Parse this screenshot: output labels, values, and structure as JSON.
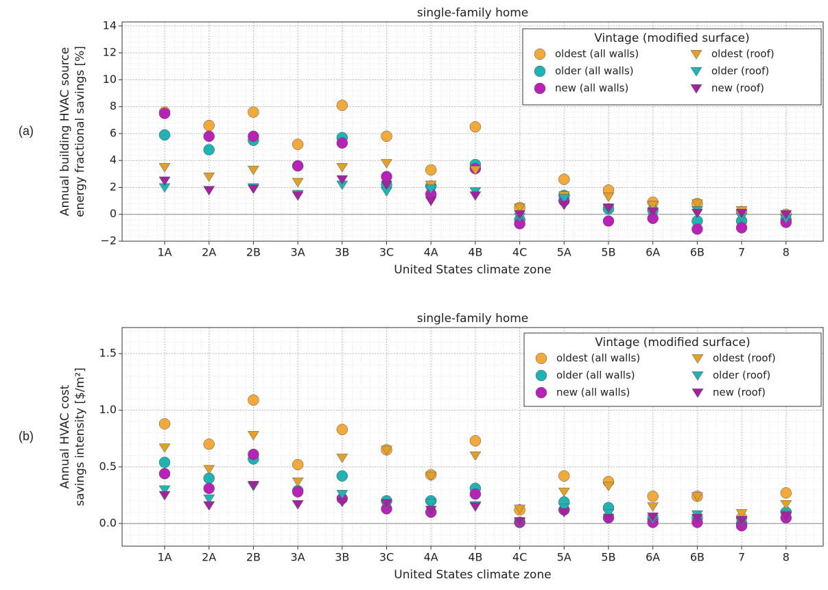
{
  "chart_data": [
    {
      "type": "scatter",
      "panel_label": "(a)",
      "title": "single-family home",
      "xlabel": "United States climate zone",
      "ylabel": [
        "Annual building HVAC source",
        "energy fractional savings [%]"
      ],
      "legend_title": "Vintage (modified surface)",
      "legend": "upper right",
      "grid": true,
      "categories": [
        "1A",
        "2A",
        "2B",
        "3A",
        "3B",
        "3C",
        "4A",
        "4B",
        "4C",
        "5A",
        "5B",
        "6A",
        "6B",
        "7",
        "8"
      ],
      "ylim": [
        -2,
        14.3
      ],
      "yticks": [
        {
          "value": -2,
          "label": "−2"
        },
        0,
        2,
        4,
        6,
        8,
        10,
        12,
        14
      ],
      "series": [
        {
          "name": "oldest (all walls)",
          "color": "#f2a93b",
          "marker": "circle",
          "values": [
            7.6,
            6.6,
            7.6,
            5.2,
            8.1,
            5.8,
            3.3,
            6.5,
            0.5,
            2.6,
            1.8,
            0.9,
            0.8,
            0.2,
            0.0
          ]
        },
        {
          "name": "older (all walls)",
          "color": "#1fb3b3",
          "marker": "circle",
          "values": [
            5.9,
            4.8,
            5.5,
            3.6,
            5.7,
            2.2,
            2.1,
            3.7,
            -0.4,
            1.4,
            0.4,
            0.3,
            -0.5,
            -0.5,
            -0.4
          ]
        },
        {
          "name": "new (all walls)",
          "color": "#b623b6",
          "marker": "circle",
          "values": [
            7.5,
            5.8,
            5.8,
            3.6,
            5.3,
            2.8,
            1.5,
            3.4,
            -0.7,
            1.0,
            -0.5,
            -0.3,
            -1.1,
            -1.0,
            -0.6
          ]
        },
        {
          "name": "oldest (roof)",
          "color": "#e0a02a",
          "marker": "triangle",
          "values": [
            3.5,
            2.8,
            3.3,
            2.4,
            3.5,
            3.8,
            2.2,
            3.3,
            0.5,
            1.4,
            1.3,
            0.7,
            0.8,
            0.3,
            0.0
          ]
        },
        {
          "name": "older (roof)",
          "color": "#1fb3b3",
          "marker": "triangle",
          "values": [
            2.0,
            1.8,
            2.0,
            1.5,
            2.2,
            1.7,
            1.9,
            1.7,
            -0.2,
            1.2,
            0.4,
            0.2,
            0.3,
            -0.2,
            -0.3
          ]
        },
        {
          "name": "new (roof)",
          "color": "#a3239e",
          "marker": "triangle",
          "values": [
            2.5,
            1.8,
            1.9,
            1.4,
            2.6,
            2.2,
            1.0,
            1.4,
            0.0,
            0.7,
            0.5,
            0.2,
            0.1,
            0.1,
            0.0
          ]
        }
      ]
    },
    {
      "type": "scatter",
      "panel_label": "(b)",
      "title": "single-family home",
      "xlabel": "United States climate zone",
      "ylabel": [
        "Annual HVAC cost",
        "savings intensity [$/m²]"
      ],
      "legend_title": "Vintage (modified surface)",
      "legend": "upper right",
      "grid": true,
      "categories": [
        "1A",
        "2A",
        "2B",
        "3A",
        "3B",
        "3C",
        "4A",
        "4B",
        "4C",
        "5A",
        "5B",
        "6A",
        "6B",
        "7",
        "8"
      ],
      "ylim": [
        -0.2,
        1.73
      ],
      "yticks": [
        {
          "value": 0,
          "label": "0.0"
        },
        {
          "value": 0.5,
          "label": "0.5"
        },
        {
          "value": 1,
          "label": "1.0"
        },
        {
          "value": 1.5,
          "label": "1.5"
        }
      ],
      "series": [
        {
          "name": "oldest (all walls)",
          "color": "#f2a93b",
          "marker": "circle",
          "values": [
            0.88,
            0.7,
            1.09,
            0.52,
            0.83,
            0.65,
            0.43,
            0.73,
            0.12,
            0.42,
            0.37,
            0.24,
            0.24,
            0.05,
            0.27
          ]
        },
        {
          "name": "older (all walls)",
          "color": "#1fb3b3",
          "marker": "circle",
          "values": [
            0.54,
            0.4,
            0.57,
            0.29,
            0.42,
            0.2,
            0.2,
            0.31,
            0.01,
            0.19,
            0.14,
            0.04,
            0.05,
            0.0,
            0.1
          ]
        },
        {
          "name": "new (all walls)",
          "color": "#b623b6",
          "marker": "circle",
          "values": [
            0.44,
            0.31,
            0.61,
            0.28,
            0.22,
            0.13,
            0.1,
            0.26,
            0.01,
            0.12,
            0.05,
            0.01,
            0.01,
            -0.02,
            0.05
          ]
        },
        {
          "name": "oldest (roof)",
          "color": "#e0a02a",
          "marker": "triangle",
          "values": [
            0.67,
            0.48,
            0.78,
            0.37,
            0.58,
            0.65,
            0.42,
            0.6,
            0.13,
            0.28,
            0.33,
            0.15,
            0.24,
            0.09,
            0.17
          ]
        },
        {
          "name": "older (roof)",
          "color": "#1fb3b3",
          "marker": "triangle",
          "values": [
            0.3,
            0.22,
            0.33,
            0.17,
            0.26,
            0.17,
            0.18,
            0.16,
            0.01,
            0.14,
            0.09,
            0.04,
            0.08,
            0.02,
            0.08
          ]
        },
        {
          "name": "new (roof)",
          "color": "#a3239e",
          "marker": "triangle",
          "values": [
            0.25,
            0.16,
            0.34,
            0.17,
            0.19,
            0.18,
            0.12,
            0.15,
            0.02,
            0.1,
            0.05,
            0.06,
            0.05,
            0.03,
            0.07
          ]
        }
      ]
    }
  ]
}
